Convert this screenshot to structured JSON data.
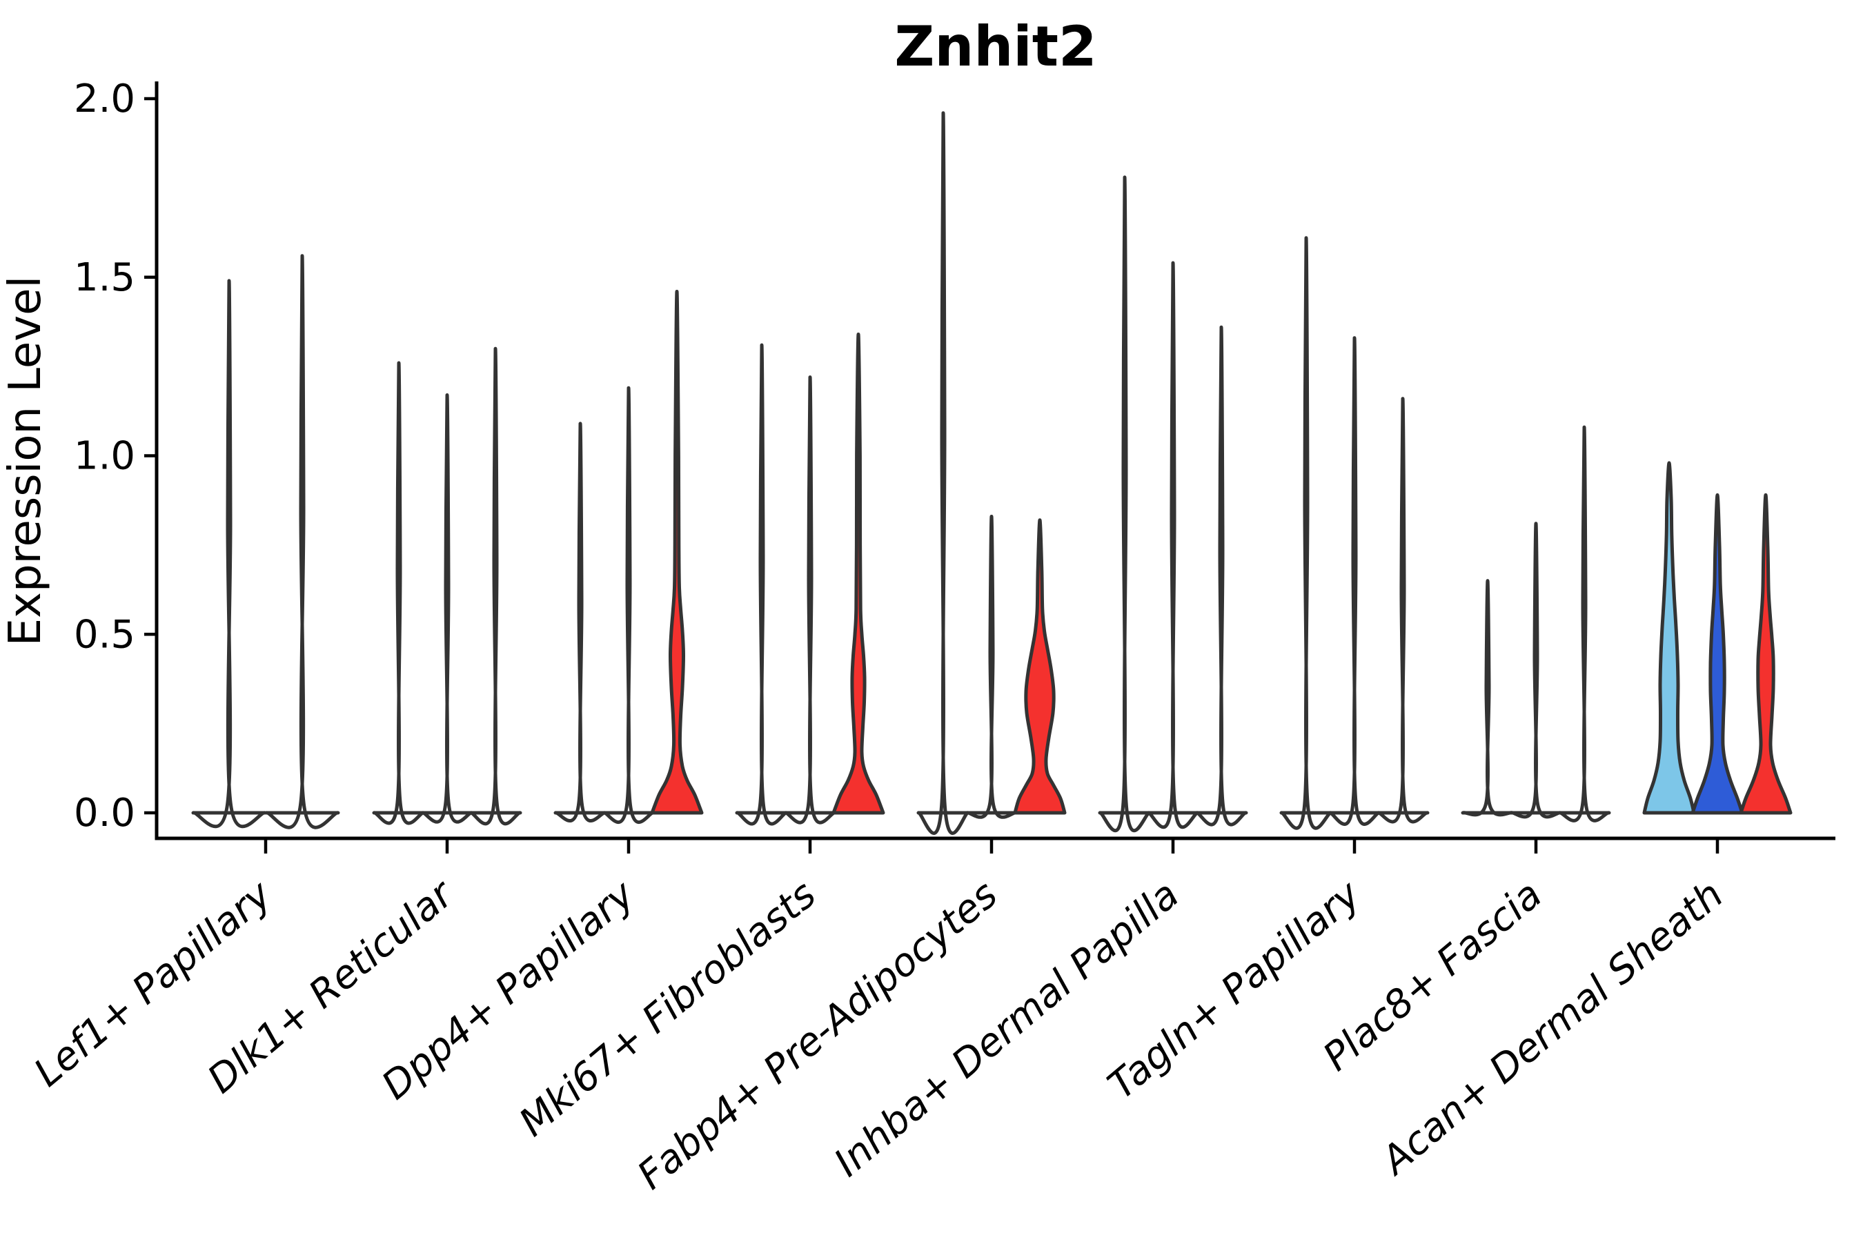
{
  "title": "Znhit2",
  "axes": {
    "ylabel": "Expression Level",
    "ytick_labels": [
      "0.0",
      "0.5",
      "1.0",
      "1.5",
      "2.0"
    ]
  },
  "colors": {
    "outline": "#333333",
    "axis": "#000000",
    "red": "#f4312e",
    "blue": "#2e5cd7",
    "lightblue": "#7dc6e8",
    "background": "#ffffff"
  },
  "chart_data": {
    "type": "violin",
    "title": "Znhit2",
    "xlabel": "",
    "ylabel": "Expression Level",
    "ylim": [
      0,
      2.05
    ],
    "yticks": [
      0,
      0.5,
      1.0,
      1.5,
      2.0
    ],
    "grid": false,
    "legend": "none",
    "categories": [
      "Lef1+ Papillary",
      "Dlk1+ Reticular",
      "Dpp4+ Papillary",
      "Mki67+ Fibroblasts",
      "Fabp4+ Pre-Adipocytes",
      "Inhba+ Dermal Papilla",
      "Tagln+ Papillary",
      "Plac8+ Fascia",
      "Acan+ Dermal Sheath"
    ],
    "groups": [
      {
        "category": "Lef1+ Papillary",
        "violins": [
          {
            "max": 1.49,
            "fill": "none"
          },
          {
            "max": 1.56,
            "fill": "none"
          }
        ]
      },
      {
        "category": "Dlk1+ Reticular",
        "violins": [
          {
            "max": 1.26,
            "fill": "none"
          },
          {
            "max": 1.17,
            "fill": "none"
          },
          {
            "max": 1.3,
            "fill": "none"
          }
        ]
      },
      {
        "category": "Dpp4+ Papillary",
        "violins": [
          {
            "max": 1.09,
            "fill": "none"
          },
          {
            "max": 1.19,
            "fill": "none"
          },
          {
            "max": 1.46,
            "fill": "red",
            "profile": [
              [
                0,
                36
              ],
              [
                0.05,
                26
              ],
              [
                0.09,
                15
              ],
              [
                0.13,
                8
              ],
              [
                0.19,
                4.5
              ],
              [
                0.27,
                5.5
              ],
              [
                0.35,
                8
              ],
              [
                0.44,
                9.5
              ],
              [
                0.51,
                8
              ],
              [
                0.57,
                5.5
              ],
              [
                0.63,
                3.5
              ],
              [
                0.75,
                2.8
              ],
              [
                1.0,
                2.4
              ]
            ]
          }
        ]
      },
      {
        "category": "Mki67+ Fibroblasts",
        "violins": [
          {
            "max": 1.31,
            "fill": "none"
          },
          {
            "max": 1.22,
            "fill": "none"
          },
          {
            "max": 1.34,
            "fill": "red",
            "profile": [
              [
                0,
                36
              ],
              [
                0.05,
                26
              ],
              [
                0.09,
                15
              ],
              [
                0.13,
                7.5
              ],
              [
                0.17,
                5
              ],
              [
                0.24,
                6.5
              ],
              [
                0.31,
                8.5
              ],
              [
                0.38,
                9
              ],
              [
                0.44,
                7.5
              ],
              [
                0.5,
                5
              ],
              [
                0.57,
                3.2
              ],
              [
                0.75,
                2.6
              ],
              [
                1.0,
                2.4
              ]
            ]
          }
        ]
      },
      {
        "category": "Fabp4+ Pre-Adipocytes",
        "violins": [
          {
            "max": 1.96,
            "fill": "none"
          },
          {
            "max": 0.83,
            "fill": "none"
          },
          {
            "max": 0.82,
            "fill": "red",
            "profile": [
              [
                0,
                36
              ],
              [
                0.04,
                30
              ],
              [
                0.08,
                19
              ],
              [
                0.11,
                11
              ],
              [
                0.15,
                9
              ],
              [
                0.21,
                13
              ],
              [
                0.28,
                19
              ],
              [
                0.34,
                20
              ],
              [
                0.4,
                16.5
              ],
              [
                0.46,
                11
              ],
              [
                0.51,
                6.5
              ],
              [
                0.57,
                3.8
              ],
              [
                0.68,
                2.8
              ]
            ]
          }
        ]
      },
      {
        "category": "Inhba+ Dermal Papilla",
        "violins": [
          {
            "max": 1.78,
            "fill": "none"
          },
          {
            "max": 1.54,
            "fill": "none"
          },
          {
            "max": 1.36,
            "fill": "none"
          }
        ]
      },
      {
        "category": "Tagln+ Papillary",
        "violins": [
          {
            "max": 1.61,
            "fill": "none"
          },
          {
            "max": 1.33,
            "fill": "none"
          },
          {
            "max": 1.16,
            "fill": "none"
          }
        ]
      },
      {
        "category": "Plac8+ Fascia",
        "violins": [
          {
            "max": 0.65,
            "fill": "none"
          },
          {
            "max": 0.81,
            "fill": "none"
          },
          {
            "max": 1.08,
            "fill": "none"
          }
        ]
      },
      {
        "category": "Acan+ Dermal Sheath",
        "violins": [
          {
            "max": 0.98,
            "fill": "lightblue",
            "profile": [
              [
                0,
                36
              ],
              [
                0.04,
                31
              ],
              [
                0.09,
                22
              ],
              [
                0.14,
                16
              ],
              [
                0.2,
                13
              ],
              [
                0.28,
                12.5
              ],
              [
                0.36,
                13
              ],
              [
                0.44,
                12
              ],
              [
                0.52,
                10
              ],
              [
                0.6,
                7.5
              ],
              [
                0.68,
                5.5
              ],
              [
                0.78,
                3.8
              ],
              [
                0.88,
                3
              ]
            ]
          },
          {
            "max": 0.89,
            "fill": "blue",
            "profile": [
              [
                0,
                36
              ],
              [
                0.04,
                29
              ],
              [
                0.09,
                19
              ],
              [
                0.14,
                11.5
              ],
              [
                0.19,
                8
              ],
              [
                0.26,
                8.5
              ],
              [
                0.34,
                10
              ],
              [
                0.42,
                10
              ],
              [
                0.5,
                8.5
              ],
              [
                0.57,
                6.2
              ],
              [
                0.64,
                4.2
              ],
              [
                0.75,
                3
              ]
            ]
          },
          {
            "max": 0.89,
            "fill": "red",
            "profile": [
              [
                0,
                36
              ],
              [
                0.04,
                29
              ],
              [
                0.09,
                18
              ],
              [
                0.14,
                10
              ],
              [
                0.19,
                7
              ],
              [
                0.27,
                9
              ],
              [
                0.35,
                11
              ],
              [
                0.43,
                11
              ],
              [
                0.49,
                9
              ],
              [
                0.55,
                6.5
              ],
              [
                0.62,
                4.2
              ],
              [
                0.74,
                3
              ]
            ]
          }
        ]
      }
    ]
  }
}
